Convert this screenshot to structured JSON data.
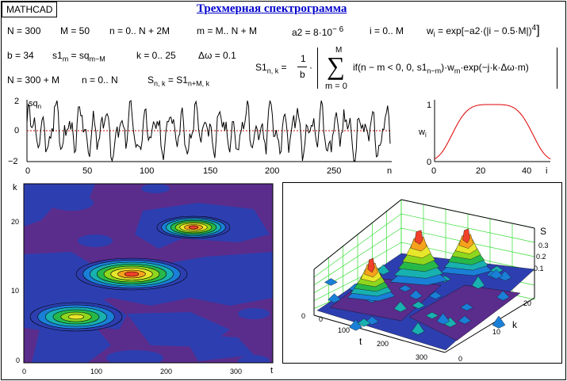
{
  "app_badge": "MATHCAD",
  "title": "Трехмерная спектрограмма",
  "formulas": {
    "N_def": "N = 300",
    "M_def": "M = 50",
    "n_range": "n = 0.. N + 2M",
    "m_range": "m = M.. N + M",
    "a2_def": "a2 = 8·10",
    "a2_exp": "− 6",
    "i_range": "i = 0.. M",
    "w_lhs": "w",
    "w_sub": "i",
    "w_rhs": "= exp[−a2·(|i − 0.5·M|)",
    "w_exp": "4",
    "w_close": "]",
    "b_def": "b = 34",
    "s1_lhs": "s1",
    "s1_sub": "m",
    "s1_rhs": "= sq",
    "s1_rsub": "m−M",
    "k_range": "k = 0.. 25",
    "dw_def": "Δω = 0.1",
    "N2_def": "N = 300 + M",
    "n2_range": "n = 0.. N",
    "S_lhs": "S",
    "S_sub": "n, k",
    "S_rhs": "= S1",
    "S_rsub": "n+M, k",
    "S1_lhs": "S1",
    "S1_sub": "n, k",
    "S1_eq": "=",
    "frac_num": "1",
    "frac_den": "b",
    "dot": "·",
    "sum_top": "M",
    "sum_symbol": "∑",
    "sum_bottom": "m = 0",
    "sum_body": "if(n − m < 0, 0, s1",
    "sum_body_sub": "n−m",
    "sum_body_tail": ")·w",
    "sum_body_sub2": "m",
    "sum_body_end": "·exp(−j·k·Δω·m)"
  },
  "signal_plot": {
    "y_label": "sq",
    "y_label_sub": "n",
    "y_ticks": [
      "2",
      "0",
      "−2"
    ],
    "x_ticks": [
      "0",
      "50",
      "100",
      "150",
      "200",
      "250"
    ],
    "x_label": "n",
    "line_color": "#000000",
    "zero_line_color": "#cc0000"
  },
  "window_plot": {
    "y_label": "w",
    "y_label_sub": "i",
    "y_ticks": [
      "1",
      "0"
    ],
    "x_ticks": [
      "0",
      "20",
      "40"
    ],
    "x_label": "i",
    "line_color": "#dd0000"
  },
  "contour_plot": {
    "y_label": "k",
    "y_ticks": [
      "20",
      "10",
      "0"
    ],
    "x_ticks": [
      "0",
      "100",
      "200",
      "300"
    ],
    "x_label": "t",
    "background_color": "#5a2c8c"
  },
  "surface_plot": {
    "z_label": "S",
    "z_ticks": [
      "0.3",
      "0.2",
      "0.1",
      "0"
    ],
    "t_ticks": [
      "0",
      "100",
      "200",
      "300"
    ],
    "t_label": "t",
    "k_ticks": [
      "20",
      "10",
      "0"
    ],
    "k_label": "k",
    "grid_color": "#33dd33"
  }
}
